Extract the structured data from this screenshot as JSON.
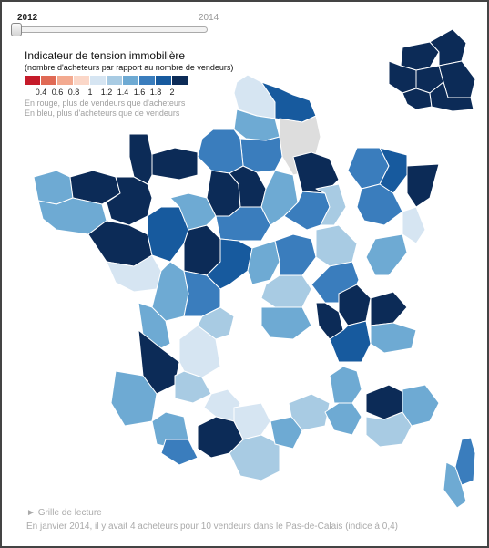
{
  "slider": {
    "year_start": "2012",
    "year_end": "2014",
    "position": 0
  },
  "legend": {
    "title": "Indicateur de tension immobilière",
    "subtitle": "(nombre d'acheteurs par rapport au nombre de vendeurs)",
    "ticks": [
      "0.4",
      "0.6",
      "0.8",
      "1",
      "1.2",
      "1.4",
      "1.6",
      "1.8",
      "2"
    ],
    "colors": [
      "#c51b2a",
      "#e06a55",
      "#f3aa90",
      "#fbd7c8",
      "#d6e5f2",
      "#a8cbe3",
      "#6eaad3",
      "#3a7dbd",
      "#175a9e",
      "#0c2b57"
    ],
    "note_red": "En rouge, plus de vendeurs que d'acheteurs",
    "note_blue": "En bleu, plus d'acheteurs que de vendeurs"
  },
  "reading": {
    "title": "Grille de lecture",
    "text": "En janvier 2014, il y avait 4 acheteurs pour 10 vendeurs dans le Pas-de-Calais (indice à 0,4)"
  },
  "map_colors": {
    "c1": "#d6e5f2",
    "c2": "#a8cbe3",
    "c3": "#6eaad3",
    "c4": "#3a7dbd",
    "c5": "#175a9e",
    "c6": "#0c2b57",
    "nodata": "#dddddd",
    "missing": "#ffffff"
  }
}
